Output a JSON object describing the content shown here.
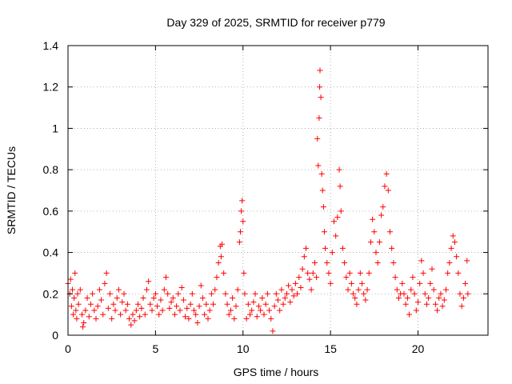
{
  "chart_data": {
    "type": "scatter",
    "title": "Day 329 of 2025, SRMTID for receiver p779",
    "xlabel": "GPS time / hours",
    "ylabel": "SRMTID / TECUs",
    "xlim": [
      0,
      24
    ],
    "ylim": [
      0,
      1.4
    ],
    "x_ticks": [
      0,
      5,
      10,
      15,
      20
    ],
    "y_ticks": [
      0,
      0.2,
      0.4,
      0.6,
      0.8,
      1,
      1.2,
      1.4
    ],
    "x_tick_labels": [
      "0",
      "5",
      "10",
      "15",
      "20"
    ],
    "y_tick_labels": [
      "0",
      "0.2",
      "0.4",
      "0.6",
      "0.8",
      "1",
      "1.2",
      "1.4"
    ],
    "grid": true,
    "marker": "+",
    "color": "#ff0000",
    "series": [
      {
        "name": "SRMTID",
        "points": [
          [
            0.0,
            0.25
          ],
          [
            0.1,
            0.2
          ],
          [
            0.15,
            0.27
          ],
          [
            0.2,
            0.14
          ],
          [
            0.25,
            0.22
          ],
          [
            0.3,
            0.1
          ],
          [
            0.35,
            0.18
          ],
          [
            0.4,
            0.3
          ],
          [
            0.45,
            0.12
          ],
          [
            0.5,
            0.08
          ],
          [
            0.55,
            0.2
          ],
          [
            0.6,
            0.15
          ],
          [
            0.7,
            0.22
          ],
          [
            0.8,
            0.1
          ],
          [
            0.85,
            0.04
          ],
          [
            0.9,
            0.06
          ],
          [
            1.0,
            0.12
          ],
          [
            1.1,
            0.18
          ],
          [
            1.2,
            0.09
          ],
          [
            1.3,
            0.15
          ],
          [
            1.4,
            0.2
          ],
          [
            1.5,
            0.12
          ],
          [
            1.6,
            0.08
          ],
          [
            1.7,
            0.14
          ],
          [
            1.8,
            0.22
          ],
          [
            1.9,
            0.17
          ],
          [
            2.0,
            0.1
          ],
          [
            2.1,
            0.25
          ],
          [
            2.2,
            0.3
          ],
          [
            2.3,
            0.13
          ],
          [
            2.4,
            0.2
          ],
          [
            2.5,
            0.08
          ],
          [
            2.6,
            0.15
          ],
          [
            2.7,
            0.12
          ],
          [
            2.8,
            0.18
          ],
          [
            2.9,
            0.22
          ],
          [
            3.0,
            0.1
          ],
          [
            3.1,
            0.16
          ],
          [
            3.2,
            0.2
          ],
          [
            3.3,
            0.12
          ],
          [
            3.4,
            0.15
          ],
          [
            3.5,
            0.08
          ],
          [
            3.6,
            0.05
          ],
          [
            3.7,
            0.1
          ],
          [
            3.8,
            0.07
          ],
          [
            3.9,
            0.12
          ],
          [
            4.0,
            0.15
          ],
          [
            4.1,
            0.09
          ],
          [
            4.2,
            0.13
          ],
          [
            4.3,
            0.18
          ],
          [
            4.4,
            0.1
          ],
          [
            4.5,
            0.22
          ],
          [
            4.6,
            0.26
          ],
          [
            4.7,
            0.15
          ],
          [
            4.8,
            0.12
          ],
          [
            4.9,
            0.18
          ],
          [
            5.0,
            0.2
          ],
          [
            5.1,
            0.14
          ],
          [
            5.2,
            0.1
          ],
          [
            5.3,
            0.17
          ],
          [
            5.4,
            0.12
          ],
          [
            5.5,
            0.22
          ],
          [
            5.6,
            0.28
          ],
          [
            5.7,
            0.2
          ],
          [
            5.8,
            0.13
          ],
          [
            5.9,
            0.16
          ],
          [
            6.0,
            0.18
          ],
          [
            6.1,
            0.1
          ],
          [
            6.2,
            0.14
          ],
          [
            6.3,
            0.2
          ],
          [
            6.4,
            0.12
          ],
          [
            6.5,
            0.23
          ],
          [
            6.6,
            0.17
          ],
          [
            6.7,
            0.09
          ],
          [
            6.8,
            0.13
          ],
          [
            6.9,
            0.08
          ],
          [
            7.0,
            0.15
          ],
          [
            7.1,
            0.2
          ],
          [
            7.2,
            0.12
          ],
          [
            7.3,
            0.1
          ],
          [
            7.4,
            0.06
          ],
          [
            7.5,
            0.14
          ],
          [
            7.6,
            0.24
          ],
          [
            7.7,
            0.18
          ],
          [
            7.8,
            0.1
          ],
          [
            7.9,
            0.15
          ],
          [
            8.0,
            0.08
          ],
          [
            8.1,
            0.12
          ],
          [
            8.2,
            0.2
          ],
          [
            8.3,
            0.15
          ],
          [
            8.4,
            0.22
          ],
          [
            8.5,
            0.28
          ],
          [
            8.6,
            0.35
          ],
          [
            8.7,
            0.43
          ],
          [
            8.75,
            0.38
          ],
          [
            8.8,
            0.44
          ],
          [
            8.9,
            0.3
          ],
          [
            9.0,
            0.2
          ],
          [
            9.1,
            0.15
          ],
          [
            9.2,
            0.1
          ],
          [
            9.3,
            0.12
          ],
          [
            9.4,
            0.18
          ],
          [
            9.5,
            0.08
          ],
          [
            9.6,
            0.14
          ],
          [
            9.7,
            0.22
          ],
          [
            9.8,
            0.45
          ],
          [
            9.85,
            0.5
          ],
          [
            9.9,
            0.6
          ],
          [
            9.95,
            0.65
          ],
          [
            10.0,
            0.55
          ],
          [
            10.05,
            0.3
          ],
          [
            10.1,
            0.2
          ],
          [
            10.2,
            0.08
          ],
          [
            10.3,
            0.15
          ],
          [
            10.4,
            0.1
          ],
          [
            10.5,
            0.12
          ],
          [
            10.6,
            0.16
          ],
          [
            10.7,
            0.2
          ],
          [
            10.8,
            0.09
          ],
          [
            10.9,
            0.14
          ],
          [
            11.0,
            0.12
          ],
          [
            11.1,
            0.18
          ],
          [
            11.2,
            0.1
          ],
          [
            11.3,
            0.15
          ],
          [
            11.4,
            0.2
          ],
          [
            11.5,
            0.12
          ],
          [
            11.6,
            0.08
          ],
          [
            11.7,
            0.02
          ],
          [
            11.8,
            0.14
          ],
          [
            11.9,
            0.2
          ],
          [
            12.0,
            0.17
          ],
          [
            12.1,
            0.12
          ],
          [
            12.2,
            0.22
          ],
          [
            12.3,
            0.15
          ],
          [
            12.4,
            0.18
          ],
          [
            12.5,
            0.2
          ],
          [
            12.6,
            0.24
          ],
          [
            12.7,
            0.16
          ],
          [
            12.8,
            0.22
          ],
          [
            12.9,
            0.19
          ],
          [
            13.0,
            0.25
          ],
          [
            13.1,
            0.2
          ],
          [
            13.2,
            0.28
          ],
          [
            13.3,
            0.23
          ],
          [
            13.4,
            0.32
          ],
          [
            13.5,
            0.38
          ],
          [
            13.6,
            0.42
          ],
          [
            13.7,
            0.3
          ],
          [
            13.8,
            0.27
          ],
          [
            13.9,
            0.22
          ],
          [
            14.0,
            0.3
          ],
          [
            14.1,
            0.35
          ],
          [
            14.2,
            0.28
          ],
          [
            14.25,
            0.95
          ],
          [
            14.3,
            0.82
          ],
          [
            14.35,
            1.05
          ],
          [
            14.38,
            1.2
          ],
          [
            14.4,
            1.28
          ],
          [
            14.45,
            1.15
          ],
          [
            14.5,
            0.78
          ],
          [
            14.55,
            0.7
          ],
          [
            14.6,
            0.62
          ],
          [
            14.65,
            0.5
          ],
          [
            14.7,
            0.42
          ],
          [
            14.8,
            0.35
          ],
          [
            14.9,
            0.3
          ],
          [
            15.0,
            0.25
          ],
          [
            15.1,
            0.4
          ],
          [
            15.2,
            0.55
          ],
          [
            15.3,
            0.48
          ],
          [
            15.4,
            0.57
          ],
          [
            15.5,
            0.8
          ],
          [
            15.55,
            0.72
          ],
          [
            15.6,
            0.6
          ],
          [
            15.7,
            0.42
          ],
          [
            15.8,
            0.35
          ],
          [
            15.9,
            0.28
          ],
          [
            16.0,
            0.22
          ],
          [
            16.1,
            0.3
          ],
          [
            16.2,
            0.25
          ],
          [
            16.3,
            0.2
          ],
          [
            16.4,
            0.18
          ],
          [
            16.5,
            0.15
          ],
          [
            16.6,
            0.22
          ],
          [
            16.7,
            0.3
          ],
          [
            16.8,
            0.25
          ],
          [
            16.9,
            0.2
          ],
          [
            17.0,
            0.17
          ],
          [
            17.1,
            0.22
          ],
          [
            17.2,
            0.3
          ],
          [
            17.3,
            0.45
          ],
          [
            17.4,
            0.56
          ],
          [
            17.5,
            0.5
          ],
          [
            17.6,
            0.4
          ],
          [
            17.7,
            0.35
          ],
          [
            17.8,
            0.45
          ],
          [
            17.9,
            0.58
          ],
          [
            18.0,
            0.62
          ],
          [
            18.1,
            0.72
          ],
          [
            18.2,
            0.78
          ],
          [
            18.3,
            0.7
          ],
          [
            18.4,
            0.5
          ],
          [
            18.5,
            0.42
          ],
          [
            18.6,
            0.35
          ],
          [
            18.7,
            0.28
          ],
          [
            18.8,
            0.22
          ],
          [
            18.9,
            0.18
          ],
          [
            19.0,
            0.2
          ],
          [
            19.1,
            0.25
          ],
          [
            19.2,
            0.2
          ],
          [
            19.3,
            0.15
          ],
          [
            19.4,
            0.18
          ],
          [
            19.5,
            0.1
          ],
          [
            19.6,
            0.22
          ],
          [
            19.7,
            0.28
          ],
          [
            19.8,
            0.2
          ],
          [
            19.9,
            0.12
          ],
          [
            20.0,
            0.16
          ],
          [
            20.1,
            0.25
          ],
          [
            20.2,
            0.36
          ],
          [
            20.3,
            0.3
          ],
          [
            20.4,
            0.2
          ],
          [
            20.5,
            0.15
          ],
          [
            20.6,
            0.18
          ],
          [
            20.7,
            0.25
          ],
          [
            20.8,
            0.32
          ],
          [
            20.9,
            0.22
          ],
          [
            21.0,
            0.15
          ],
          [
            21.1,
            0.12
          ],
          [
            21.2,
            0.18
          ],
          [
            21.3,
            0.2
          ],
          [
            21.4,
            0.14
          ],
          [
            21.5,
            0.17
          ],
          [
            21.6,
            0.22
          ],
          [
            21.7,
            0.3
          ],
          [
            21.8,
            0.35
          ],
          [
            21.9,
            0.42
          ],
          [
            22.0,
            0.48
          ],
          [
            22.1,
            0.45
          ],
          [
            22.2,
            0.38
          ],
          [
            22.3,
            0.3
          ],
          [
            22.4,
            0.2
          ],
          [
            22.5,
            0.14
          ],
          [
            22.6,
            0.18
          ],
          [
            22.7,
            0.25
          ],
          [
            22.8,
            0.36
          ],
          [
            22.85,
            0.2
          ]
        ]
      }
    ]
  }
}
